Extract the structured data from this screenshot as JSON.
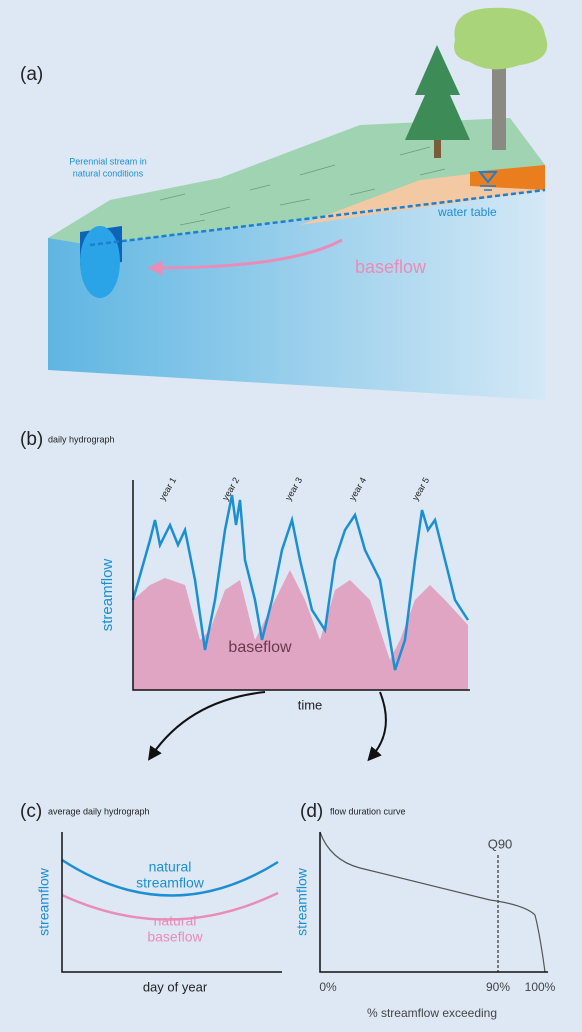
{
  "panel_a": {
    "label": "(a)",
    "stream_label": [
      "Perennial stream in",
      "natural conditions"
    ],
    "water_table": "water table",
    "baseflow": "baseflow"
  },
  "panel_b": {
    "label": "(b)",
    "title": "daily hydrograph",
    "years": [
      "year 1",
      "year 2",
      "year 3",
      "year 4",
      "year 5"
    ],
    "y_label": "streamflow",
    "area_label": "baseflow",
    "x_label": "time"
  },
  "panel_c": {
    "label": "(c)",
    "title": "average daily hydrograph",
    "streamflow_label": [
      "natural",
      "streamflow"
    ],
    "baseflow_label": [
      "natural",
      "baseflow"
    ],
    "y_label": "streamflow",
    "x_label": "day of year"
  },
  "panel_d": {
    "label": "(d)",
    "title": "flow duration curve",
    "marker": "Q90",
    "y_label": "streamflow",
    "x_ticks": [
      "0%",
      "90%",
      "100%"
    ],
    "x_label": "% streamflow exceeding"
  }
}
